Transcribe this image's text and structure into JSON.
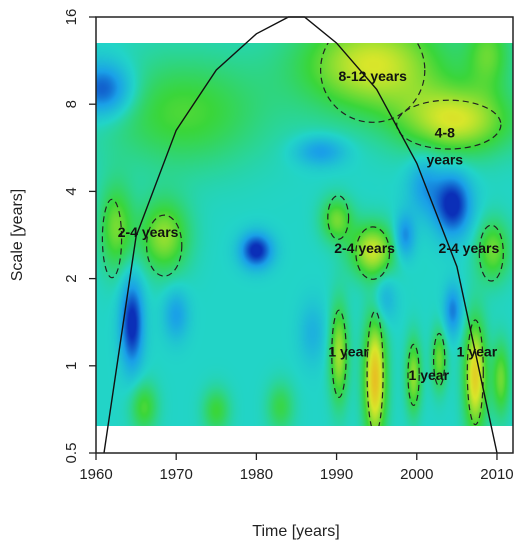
{
  "chart_data": {
    "type": "heatmap",
    "title": "",
    "xlabel": "Time [years]",
    "ylabel": "Scale [years]",
    "xlim": [
      1960,
      2012
    ],
    "ylim": [
      0.5,
      16
    ],
    "yscale": "log2",
    "x_ticks": [
      1960,
      1970,
      1980,
      1990,
      2000,
      2010
    ],
    "x_tick_labels": [
      "1960",
      "1970",
      "1980",
      "1990",
      "2000",
      "2010"
    ],
    "y_ticks": [
      0.5,
      1,
      2,
      4,
      8,
      16
    ],
    "y_tick_labels": [
      "0.5",
      "1",
      "2",
      "4",
      "8",
      "16"
    ],
    "power_range": [
      0.62,
      12.5
    ],
    "colormap": [
      "#0b2fb8",
      "#1aa0e8",
      "#22d4c8",
      "#3ad63a",
      "#d8e62a",
      "#f4a21e",
      "#e02a0a"
    ],
    "grid": false,
    "legend": "none",
    "cone_of_influence": {
      "x": [
        1961,
        1965,
        1970,
        1975,
        1980,
        1984,
        1986,
        1990,
        1995,
        2000,
        2005,
        2010
      ],
      "scale": [
        0.5,
        2.8,
        6.5,
        10.5,
        14,
        16,
        16,
        13,
        9,
        5,
        2.2,
        0.5
      ]
    },
    "annotations": [
      {
        "text": "8-12 years",
        "x": 1994.5,
        "scale": 10
      },
      {
        "text": "4-8",
        "x": 2003.5,
        "scale": 6.4
      },
      {
        "text": "years",
        "x": 2003.5,
        "scale": 5.15
      },
      {
        "text": "2-4 years",
        "x": 1966.5,
        "scale": 2.9
      },
      {
        "text": "2-4 years",
        "x": 1993.5,
        "scale": 2.55
      },
      {
        "text": "2-4 years",
        "x": 2006.5,
        "scale": 2.55
      },
      {
        "text": "1 year",
        "x": 1991.5,
        "scale": 1.12
      },
      {
        "text": "1 year",
        "x": 2001.5,
        "scale": 0.93
      },
      {
        "text": "1 year",
        "x": 2007.5,
        "scale": 1.12
      }
    ],
    "significance_contours": [
      {
        "x": 1994.5,
        "scale": 10.5,
        "rx": 6.5,
        "ry_log2": 0.6
      },
      {
        "x": 2004,
        "scale": 6.8,
        "rx": 6.5,
        "ry_log2": 0.28
      },
      {
        "x": 1962,
        "scale": 2.75,
        "rx": 1.2,
        "ry_log2": 0.45
      },
      {
        "x": 1968.5,
        "scale": 2.6,
        "rx": 2.2,
        "ry_log2": 0.35
      },
      {
        "x": 1990.2,
        "scale": 3.25,
        "rx": 1.3,
        "ry_log2": 0.25
      },
      {
        "x": 1994.5,
        "scale": 2.45,
        "rx": 2.1,
        "ry_log2": 0.3
      },
      {
        "x": 2009.3,
        "scale": 2.45,
        "rx": 1.5,
        "ry_log2": 0.32
      },
      {
        "x": 1990.3,
        "scale": 1.1,
        "rx": 0.9,
        "ry_log2": 0.5
      },
      {
        "x": 1994.8,
        "scale": 0.95,
        "rx": 1.0,
        "ry_log2": 0.7
      },
      {
        "x": 1999.6,
        "scale": 0.93,
        "rx": 0.7,
        "ry_log2": 0.35
      },
      {
        "x": 2002.8,
        "scale": 1.05,
        "rx": 0.7,
        "ry_log2": 0.3
      },
      {
        "x": 2007.3,
        "scale": 0.95,
        "rx": 1.0,
        "ry_log2": 0.6
      }
    ],
    "power_blobs": [
      {
        "x": 1961,
        "scale": 9,
        "sx": 2.5,
        "sy": 0.22,
        "p": -0.85
      },
      {
        "x": 1971,
        "scale": 7.5,
        "sx": 7,
        "sy": 0.45,
        "p": 0.5
      },
      {
        "x": 1988,
        "scale": 5.5,
        "sx": 2.2,
        "sy": 0.12,
        "p": -0.5
      },
      {
        "x": 1994.5,
        "scale": 11,
        "sx": 6.5,
        "sy": 0.4,
        "p": 0.9
      },
      {
        "x": 2005,
        "scale": 7,
        "sx": 5,
        "sy": 0.28,
        "p": 0.85
      },
      {
        "x": 2009,
        "scale": 12,
        "sx": 2,
        "sy": 0.3,
        "p": 0.5
      },
      {
        "x": 2004.5,
        "scale": 3.6,
        "sx": 1.6,
        "sy": 0.25,
        "p": -1.0
      },
      {
        "x": 2001,
        "scale": 4.2,
        "sx": 1.5,
        "sy": 0.25,
        "p": -0.45
      },
      {
        "x": 1962.5,
        "scale": 3.0,
        "sx": 1.5,
        "sy": 0.35,
        "p": 0.6
      },
      {
        "x": 1968.5,
        "scale": 2.8,
        "sx": 2.2,
        "sy": 0.3,
        "p": 0.7
      },
      {
        "x": 1990,
        "scale": 3.2,
        "sx": 1.4,
        "sy": 0.18,
        "p": 0.6
      },
      {
        "x": 1994.5,
        "scale": 2.5,
        "sx": 2,
        "sy": 0.22,
        "p": 0.85
      },
      {
        "x": 2009.5,
        "scale": 2.5,
        "sx": 1.5,
        "sy": 0.25,
        "p": 0.6
      },
      {
        "x": 1980,
        "scale": 2.5,
        "sx": 1.4,
        "sy": 0.14,
        "p": -1.0
      },
      {
        "x": 1998.5,
        "scale": 2.8,
        "sx": 0.9,
        "sy": 0.18,
        "p": -0.6
      },
      {
        "x": 1964.5,
        "scale": 1.4,
        "sx": 1,
        "sy": 0.35,
        "p": -1.0
      },
      {
        "x": 1970,
        "scale": 1.5,
        "sx": 1.1,
        "sy": 0.2,
        "p": -0.45
      },
      {
        "x": 2004.5,
        "scale": 1.55,
        "sx": 0.8,
        "sy": 0.2,
        "p": -0.6
      },
      {
        "x": 1990.3,
        "scale": 1.1,
        "sx": 0.85,
        "sy": 0.4,
        "p": 0.75
      },
      {
        "x": 1994.8,
        "scale": 0.9,
        "sx": 1.0,
        "sy": 0.5,
        "p": 1.15
      },
      {
        "x": 1999.6,
        "scale": 0.92,
        "sx": 0.7,
        "sy": 0.3,
        "p": 0.7
      },
      {
        "x": 2002.8,
        "scale": 1.05,
        "sx": 0.7,
        "sy": 0.25,
        "p": 0.6
      },
      {
        "x": 2007.3,
        "scale": 0.92,
        "sx": 1.0,
        "sy": 0.45,
        "p": 1.05
      },
      {
        "x": 2010.5,
        "scale": 0.9,
        "sx": 0.8,
        "sy": 0.3,
        "p": 0.6
      },
      {
        "x": 1966,
        "scale": 0.72,
        "sx": 1.2,
        "sy": 0.2,
        "p": 0.5
      },
      {
        "x": 1975,
        "scale": 0.7,
        "sx": 1.2,
        "sy": 0.18,
        "p": 0.45
      },
      {
        "x": 1983,
        "scale": 0.72,
        "sx": 1.2,
        "sy": 0.2,
        "p": 0.4
      },
      {
        "x": 1996,
        "scale": 1.7,
        "sx": 1.0,
        "sy": 0.2,
        "p": -0.35
      },
      {
        "x": 1987,
        "scale": 1.3,
        "sx": 1.2,
        "sy": 0.25,
        "p": -0.3
      }
    ]
  }
}
